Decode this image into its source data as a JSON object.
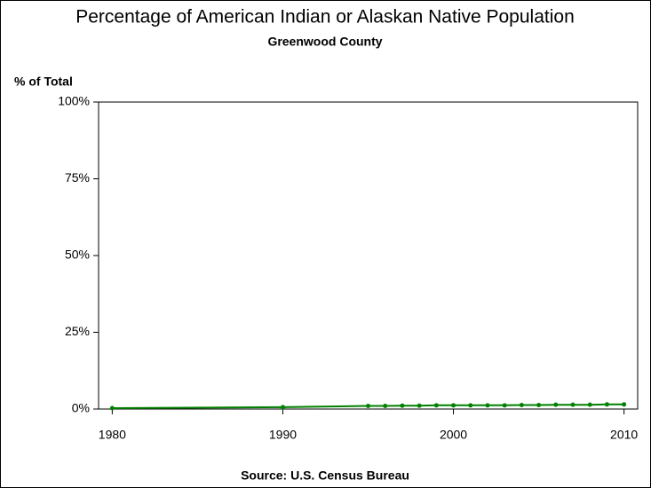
{
  "chart_data": {
    "type": "line",
    "title": "Percentage of American Indian or Alaskan Native Population",
    "subtitle": "Greenwood County",
    "y_label": "% of Total",
    "source": "Source: U.S. Census Bureau",
    "x": [
      1980,
      1990,
      1995,
      1996,
      1997,
      1998,
      1999,
      2000,
      2001,
      2002,
      2003,
      2004,
      2005,
      2006,
      2007,
      2008,
      2009,
      2010
    ],
    "series": [
      {
        "name": "Greenwood County",
        "color": "#008000",
        "values": [
          0.3,
          0.6,
          1.0,
          1.0,
          1.1,
          1.1,
          1.2,
          1.2,
          1.2,
          1.2,
          1.2,
          1.3,
          1.3,
          1.4,
          1.4,
          1.4,
          1.5,
          1.5
        ]
      }
    ],
    "xlim": [
      1979.2,
      2010.8
    ],
    "xticks": [
      1980,
      1990,
      2000,
      2010
    ],
    "ylim": [
      0,
      100
    ],
    "yticks": [
      {
        "value": 0,
        "label": "0%"
      },
      {
        "value": 25,
        "label": "25%"
      },
      {
        "value": 50,
        "label": "50%"
      },
      {
        "value": 75,
        "label": "75%"
      },
      {
        "value": 100,
        "label": "100%"
      }
    ]
  }
}
